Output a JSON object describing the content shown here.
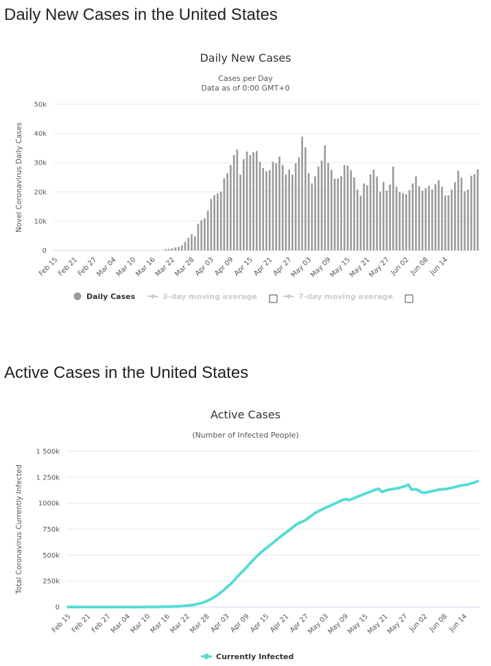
{
  "sections": {
    "daily_heading": "Daily New Cases in the United States",
    "active_heading": "Active Cases in the United States"
  },
  "colors": {
    "bar": "#999999",
    "line": "#55dcd6",
    "legend_inactive": "#cccccc",
    "text": "#333333"
  },
  "chart_data": [
    {
      "type": "bar",
      "title": "Daily New Cases",
      "subtitle": [
        "Cases per Day",
        "Data as of 0:00 GMT+0"
      ],
      "ylabel": "Novel Coronavirus Daily Cases",
      "ylim": [
        0,
        50000
      ],
      "yticks": [
        0,
        10000,
        20000,
        30000,
        40000,
        50000
      ],
      "ytick_labels": [
        "0",
        "10k",
        "20k",
        "30k",
        "40k",
        "50k"
      ],
      "xtick_labels": [
        "Feb 15",
        "Feb 21",
        "Feb 27",
        "Mar 04",
        "Mar 10",
        "Mar 16",
        "Mar 22",
        "Mar 28",
        "Apr 03",
        "Apr 09",
        "Apr 15",
        "Apr 21",
        "Apr 27",
        "May 03",
        "May 09",
        "May 15",
        "May 21",
        "May 27",
        "Jun 02",
        "Jun 08",
        "Jun 14"
      ],
      "xtick_every": 6,
      "legend": [
        {
          "name": "Daily Cases",
          "active": true,
          "icon": "circle-icon"
        },
        {
          "name": "3-day moving average",
          "active": false,
          "icon": "line-marker-icon"
        },
        {
          "name": "7-day moving average",
          "active": false,
          "icon": "line-marker-icon"
        }
      ],
      "series": [
        {
          "name": "Daily Cases",
          "values": [
            0,
            0,
            0,
            0,
            0,
            0,
            0,
            0,
            0,
            0,
            0,
            0,
            0,
            0,
            0,
            0,
            0,
            0,
            0,
            0,
            0,
            0,
            0,
            0,
            0,
            0,
            0,
            0,
            0,
            0,
            0,
            0,
            0,
            0,
            400,
            500,
            700,
            1000,
            1200,
            1700,
            2900,
            4300,
            5500,
            4800,
            9100,
            10300,
            11000,
            13600,
            17600,
            18900,
            19500,
            20100,
            24700,
            26400,
            29200,
            32600,
            34500,
            25900,
            31200,
            33800,
            32600,
            33600,
            34000,
            30300,
            28200,
            27100,
            27500,
            30300,
            29800,
            32100,
            29200,
            26000,
            27600,
            25900,
            29800,
            31800,
            38900,
            35300,
            26400,
            22900,
            25300,
            28700,
            30700,
            35900,
            29900,
            27500,
            24600,
            24600,
            25400,
            29200,
            29000,
            27400,
            25000,
            20800,
            18700,
            22900,
            22300,
            26000,
            27600,
            25300,
            20100,
            23400,
            20500,
            22500,
            28700,
            21800,
            20000,
            19600,
            19200,
            20600,
            22900,
            25300,
            22000,
            20400,
            21400,
            22100,
            20800,
            22600,
            24000,
            21800,
            18800,
            18800,
            20800,
            23300,
            27300,
            24900,
            20200,
            20800,
            25500,
            26100,
            27700
          ]
        }
      ]
    },
    {
      "type": "line",
      "title": "Active Cases",
      "subtitle": [
        "(Number of Infected People)"
      ],
      "ylabel": "Total Coronavirus Currently Infected",
      "ylim": [
        0,
        1500000
      ],
      "yticks": [
        0,
        250000,
        500000,
        750000,
        1000000,
        1250000,
        1500000
      ],
      "ytick_labels": [
        "0",
        "250k",
        "500k",
        "750k",
        "1000k",
        "1 250k",
        "1 500k"
      ],
      "xtick_labels": [
        "Feb 15",
        "Feb 21",
        "Feb 27",
        "Mar 04",
        "Mar 10",
        "Mar 16",
        "Mar 22",
        "Mar 28",
        "Apr 03",
        "Apr 09",
        "Apr 15",
        "Apr 21",
        "Apr 27",
        "May 03",
        "May 09",
        "May 15",
        "May 21",
        "May 27",
        "Jun 02",
        "Jun 08",
        "Jun 14"
      ],
      "xtick_every": 6,
      "legend": [
        {
          "name": "Currently Infected",
          "active": true,
          "icon": "line-marker-icon"
        }
      ],
      "series": [
        {
          "name": "Currently Infected",
          "values": [
            15,
            15,
            15,
            15,
            15,
            15,
            15,
            15,
            15,
            15,
            15,
            15,
            15,
            16,
            17,
            20,
            25,
            40,
            50,
            60,
            100,
            150,
            200,
            300,
            400,
            600,
            900,
            1200,
            1800,
            2500,
            3000,
            3500,
            4500,
            6000,
            8000,
            10000,
            13000,
            16000,
            21000,
            28000,
            35000,
            45000,
            58000,
            73000,
            90000,
            112000,
            135000,
            160000,
            188000,
            216000,
            248000,
            285000,
            317000,
            349000,
            383000,
            418000,
            452000,
            486000,
            515000,
            543000,
            568000,
            592000,
            617000,
            644000,
            669000,
            695000,
            718000,
            742000,
            768000,
            793000,
            812000,
            823000,
            840000,
            865000,
            888000,
            910000,
            926000,
            942000,
            958000,
            970000,
            985000,
            1000000,
            1015000,
            1030000,
            1040000,
            1030000,
            1042000,
            1055000,
            1068000,
            1080000,
            1092000,
            1105000,
            1117000,
            1130000,
            1140000,
            1110000,
            1120000,
            1130000,
            1135000,
            1140000,
            1145000,
            1155000,
            1165000,
            1178000,
            1130000,
            1135000,
            1125000,
            1105000,
            1100000,
            1108000,
            1115000,
            1122000,
            1130000,
            1133000,
            1135000,
            1140000,
            1148000,
            1155000,
            1163000,
            1170000,
            1175000,
            1180000,
            1190000,
            1200000,
            1212000
          ]
        }
      ]
    }
  ]
}
